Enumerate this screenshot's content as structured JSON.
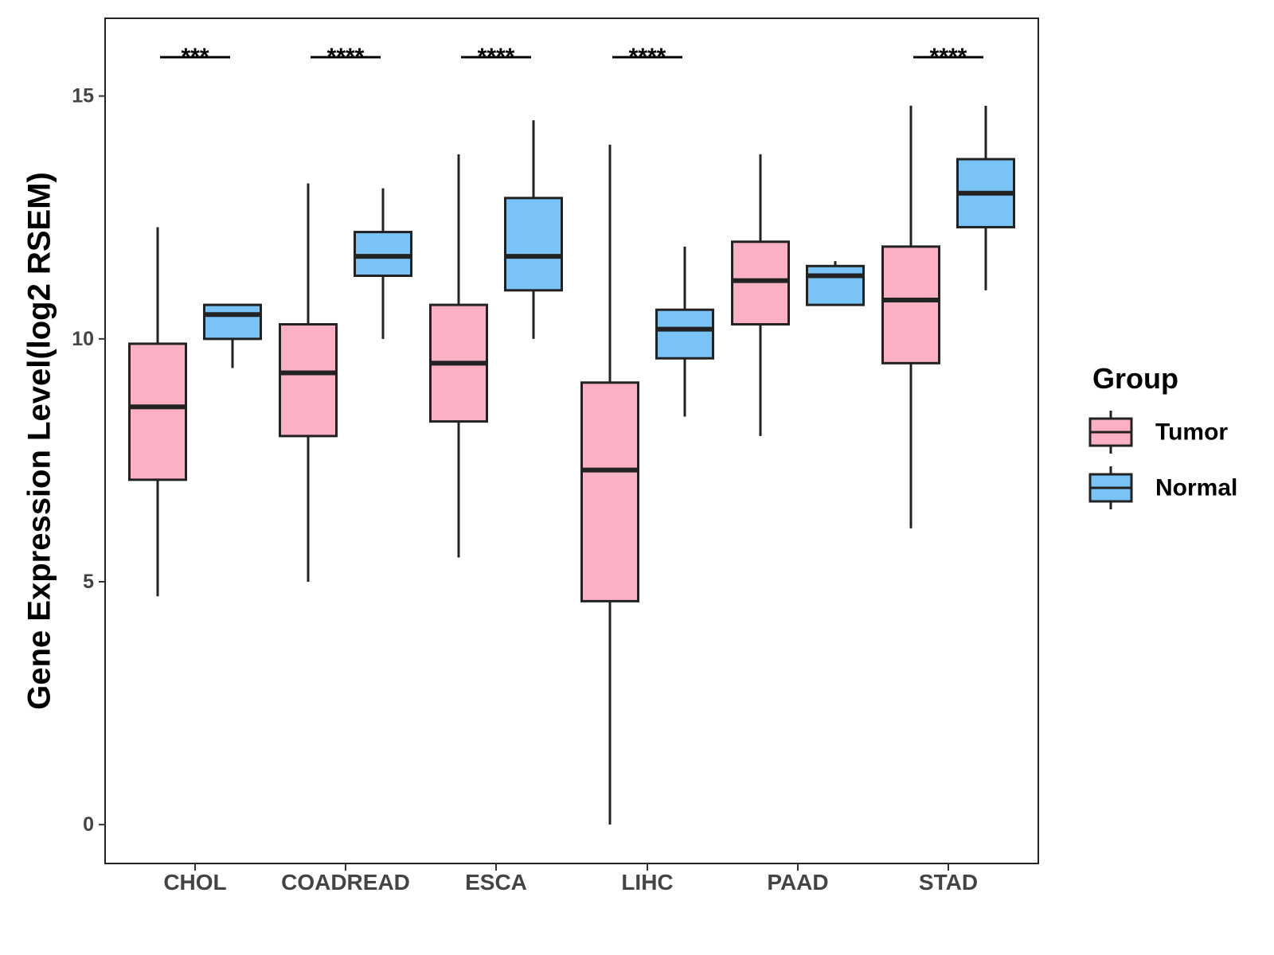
{
  "chart_data": {
    "type": "boxplot",
    "title": "",
    "xlabel": "",
    "ylabel": "Gene Expression Level(log2 RSEM)",
    "ylim": [
      -0.8,
      16.6
    ],
    "yticks": [
      0,
      5,
      10,
      15
    ],
    "grid": false,
    "legend": {
      "title": "Group",
      "placement": "right",
      "entries": [
        {
          "label": "Tumor",
          "color": "#FBB1C3"
        },
        {
          "label": "Normal",
          "color": "#79C3F7"
        }
      ]
    },
    "categories": [
      "CHOL",
      "COADREAD",
      "ESCA",
      "LIHC",
      "PAAD",
      "STAD"
    ],
    "series": [
      {
        "name": "Tumor",
        "color": "#FBB1C3",
        "boxes": [
          {
            "min": 4.7,
            "q1": 7.1,
            "median": 8.6,
            "q3": 9.9,
            "max": 12.3
          },
          {
            "min": 5.0,
            "q1": 8.0,
            "median": 9.3,
            "q3": 10.3,
            "max": 13.2
          },
          {
            "min": 5.5,
            "q1": 8.3,
            "median": 9.5,
            "q3": 10.7,
            "max": 13.8
          },
          {
            "min": 0.0,
            "q1": 4.6,
            "median": 7.3,
            "q3": 9.1,
            "max": 14.0
          },
          {
            "min": 8.0,
            "q1": 10.3,
            "median": 11.2,
            "q3": 12.0,
            "max": 13.8
          },
          {
            "min": 6.1,
            "q1": 9.5,
            "median": 10.8,
            "q3": 11.9,
            "max": 14.8
          }
        ]
      },
      {
        "name": "Normal",
        "color": "#79C3F7",
        "boxes": [
          {
            "min": 9.4,
            "q1": 10.0,
            "median": 10.5,
            "q3": 10.7,
            "max": 10.7
          },
          {
            "min": 10.0,
            "q1": 11.3,
            "median": 11.7,
            "q3": 12.2,
            "max": 13.1
          },
          {
            "min": 10.0,
            "q1": 11.0,
            "median": 11.7,
            "q3": 12.9,
            "max": 14.5
          },
          {
            "min": 8.4,
            "q1": 9.6,
            "median": 10.2,
            "q3": 10.6,
            "max": 11.9
          },
          {
            "min": 10.7,
            "q1": 10.7,
            "median": 11.3,
            "q3": 11.5,
            "max": 11.6
          },
          {
            "min": 11.0,
            "q1": 12.3,
            "median": 13.0,
            "q3": 13.7,
            "max": 14.8
          }
        ]
      }
    ],
    "annotations": [
      {
        "category": "CHOL",
        "label": "***",
        "y": 15.8
      },
      {
        "category": "COADREAD",
        "label": "****",
        "y": 15.8
      },
      {
        "category": "ESCA",
        "label": "****",
        "y": 15.8
      },
      {
        "category": "LIHC",
        "label": "****",
        "y": 15.8
      },
      {
        "category": "STAD",
        "label": "****",
        "y": 15.8
      }
    ]
  }
}
